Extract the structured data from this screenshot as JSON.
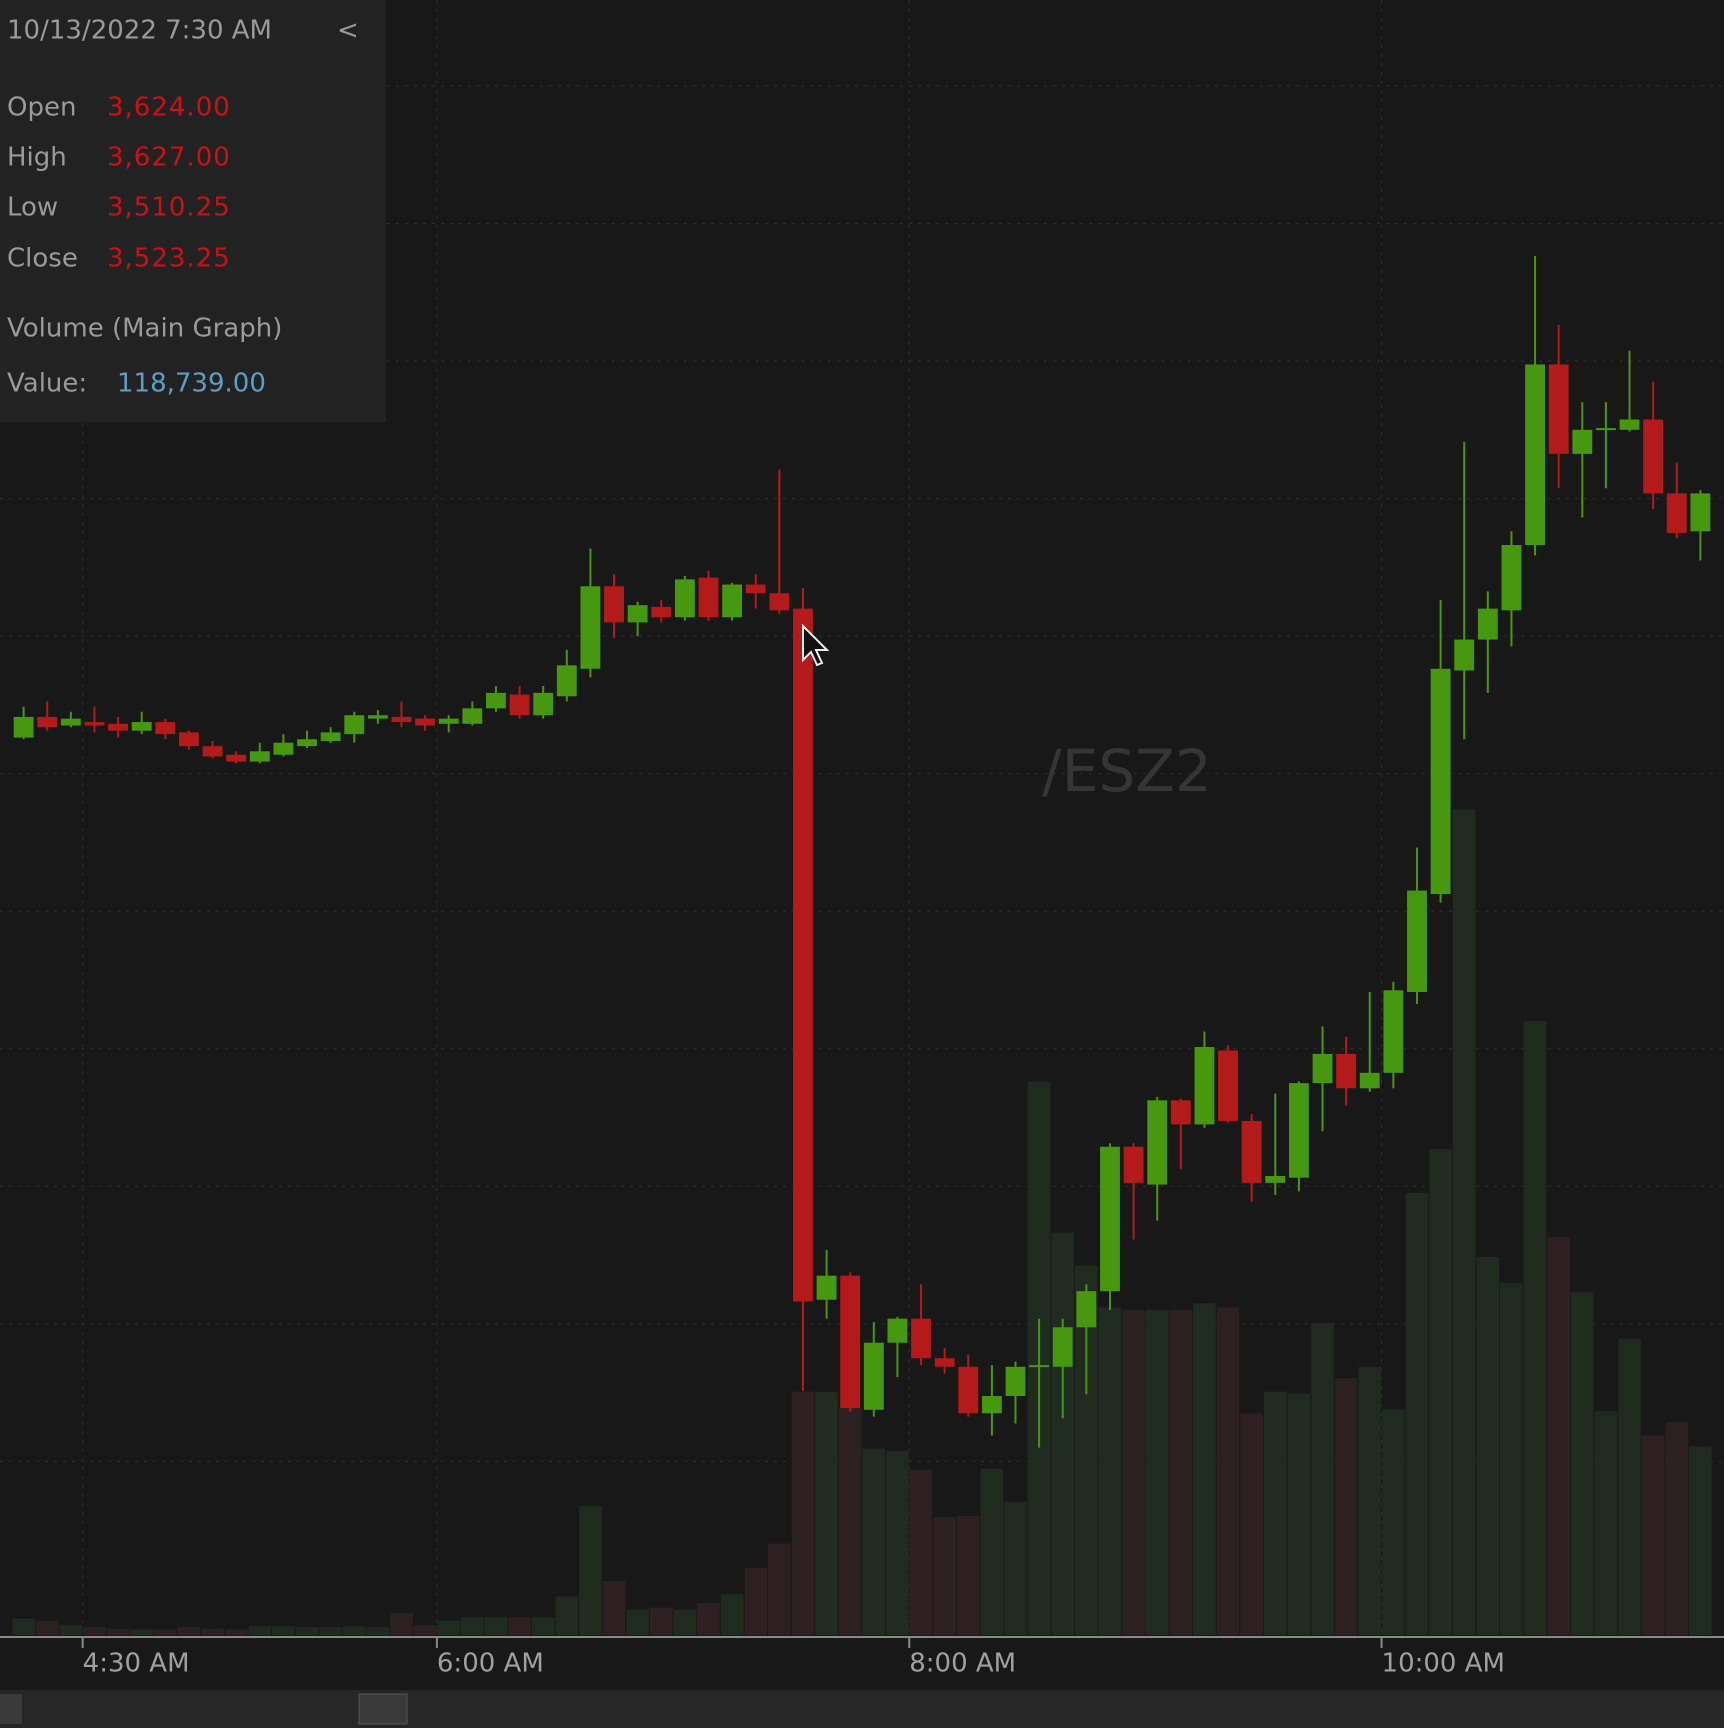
{
  "chart_data": {
    "type": "candlestick",
    "symbol": "/ESZ2",
    "x": [
      "4:12 AM",
      "4:18 AM",
      "4:24 AM",
      "4:30 AM",
      "4:36 AM",
      "4:42 AM",
      "4:48 AM",
      "4:54 AM",
      "5:00 AM",
      "5:06 AM",
      "5:12 AM",
      "5:18 AM",
      "5:24 AM",
      "5:30 AM",
      "5:36 AM",
      "5:42 AM",
      "5:48 AM",
      "5:54 AM",
      "6:00 AM",
      "6:06 AM",
      "6:12 AM",
      "6:18 AM",
      "6:24 AM",
      "6:30 AM",
      "6:36 AM",
      "6:42 AM",
      "6:48 AM",
      "6:54 AM",
      "7:00 AM",
      "7:06 AM",
      "7:12 AM",
      "7:18 AM",
      "7:24 AM",
      "7:30 AM",
      "7:36 AM",
      "7:42 AM",
      "7:48 AM",
      "7:54 AM",
      "8:00 AM",
      "8:06 AM",
      "8:12 AM",
      "8:18 AM",
      "8:24 AM",
      "8:30 AM",
      "8:36 AM",
      "8:42 AM",
      "8:48 AM",
      "8:54 AM",
      "9:00 AM",
      "9:06 AM",
      "9:12 AM",
      "9:18 AM",
      "9:24 AM",
      "9:30 AM",
      "9:36 AM",
      "9:42 AM",
      "9:48 AM",
      "9:54 AM",
      "10:00 AM",
      "10:06 AM",
      "10:12 AM",
      "10:18 AM",
      "10:24 AM",
      "10:30 AM",
      "10:36 AM",
      "10:42 AM",
      "10:48 AM",
      "10:54 AM",
      "11:00 AM",
      "11:06 AM",
      "11:12 AM",
      "11:18 AM"
    ],
    "open": [
      3605.25,
      3608.25,
      3607.0,
      3607.5,
      3607.25,
      3606.25,
      3607.5,
      3606.0,
      3604.0,
      3602.75,
      3601.75,
      3602.75,
      3604.0,
      3604.75,
      3605.75,
      3608.0,
      3608.25,
      3608.0,
      3607.25,
      3607.25,
      3609.5,
      3611.5,
      3608.5,
      3611.25,
      3615.25,
      3627.25,
      3622.0,
      3624.25,
      3622.75,
      3628.5,
      3622.75,
      3627.5,
      3626.25,
      3624,
      3523.5,
      3527.0,
      3507.5,
      3517.25,
      3520.75,
      3515.0,
      3513.75,
      3507.0,
      3509.5,
      3513.75,
      3513.75,
      3519.5,
      3524.75,
      3545.75,
      3540.25,
      3552.5,
      3549.0,
      3559.75,
      3549.5,
      3540.5,
      3541.25,
      3555.0,
      3559.25,
      3554.25,
      3556.5,
      3568.25,
      3582.5,
      3615.0,
      3619.5,
      3623.75,
      3633.25,
      3659.5,
      3646.5,
      3650.0,
      3650.0,
      3651.5,
      3640.75,
      3635.25
    ],
    "high": [
      3609.75,
      3610.5,
      3609.0,
      3609.75,
      3608.25,
      3609.0,
      3608.0,
      3606.25,
      3604.75,
      3603.25,
      3604.5,
      3605.75,
      3606.25,
      3606.75,
      3609.0,
      3609.25,
      3610.5,
      3608.5,
      3608.5,
      3610.5,
      3612.75,
      3612.75,
      3612.75,
      3618.0,
      3632.75,
      3629.0,
      3625.0,
      3625.25,
      3628.75,
      3629.5,
      3627.75,
      3629.0,
      3644.25,
      3627,
      3530.75,
      3527.5,
      3520.25,
      3521.0,
      3525.75,
      3516.5,
      3515.5,
      3514.0,
      3514.5,
      3520.75,
      3520.75,
      3525.75,
      3546.25,
      3546.25,
      3553.0,
      3552.75,
      3562.5,
      3560.5,
      3550.5,
      3553.5,
      3555.25,
      3563.25,
      3561.75,
      3568.25,
      3569.75,
      3589.25,
      3625.25,
      3648.25,
      3626.5,
      3635.25,
      3675.25,
      3665.25,
      3654.0,
      3654.0,
      3661.5,
      3657.0,
      3645.25,
      3641.25
    ],
    "low": [
      3605.0,
      3606.25,
      3606.75,
      3606.0,
      3605.25,
      3605.75,
      3605.0,
      3603.5,
      3602.25,
      3601.5,
      3601.5,
      3602.5,
      3603.75,
      3604.5,
      3604.5,
      3607.25,
      3606.75,
      3606.25,
      3606.0,
      3607.0,
      3609.0,
      3608.0,
      3608.0,
      3610.5,
      3614.0,
      3619.75,
      3620.0,
      3622.0,
      3622.25,
      3622.25,
      3622.25,
      3624.0,
      3623.25,
      3510.25,
      3520.75,
      3507.25,
      3506.5,
      3512.25,
      3514.0,
      3512.75,
      3506.5,
      3503.75,
      3505.5,
      3502.0,
      3506.25,
      3509.75,
      3522.0,
      3532.25,
      3535.0,
      3542.5,
      3548.5,
      3549.25,
      3537.75,
      3538.75,
      3539.25,
      3548.0,
      3551.75,
      3553.75,
      3554.25,
      3566.5,
      3581.25,
      3605.0,
      3611.75,
      3618.5,
      3631.75,
      3641.5,
      3637.25,
      3641.5,
      3649.75,
      3638.5,
      3634.25,
      3631.0
    ],
    "close": [
      3608.25,
      3606.75,
      3608.0,
      3607.0,
      3606.25,
      3607.5,
      3605.75,
      3604.0,
      3602.5,
      3601.75,
      3603.25,
      3604.5,
      3605.0,
      3606.0,
      3608.5,
      3608.5,
      3607.5,
      3607.0,
      3608.0,
      3609.5,
      3611.75,
      3608.5,
      3611.75,
      3615.75,
      3627.25,
      3622.0,
      3624.5,
      3622.75,
      3628.25,
      3622.75,
      3627.5,
      3626.25,
      3623.75,
      3523.25,
      3527.0,
      3507.75,
      3517.25,
      3520.75,
      3515.0,
      3513.75,
      3507.0,
      3509.5,
      3513.75,
      3514.0,
      3519.5,
      3524.75,
      3545.75,
      3540.5,
      3552.5,
      3549.0,
      3560.25,
      3549.5,
      3540.5,
      3541.5,
      3555.0,
      3559.25,
      3554.25,
      3556.5,
      3568.5,
      3583.0,
      3615.25,
      3619.5,
      3624.0,
      3633.25,
      3659.5,
      3646.5,
      3650.0,
      3650.25,
      3651.5,
      3640.75,
      3635.0,
      3640.75
    ],
    "volume": [
      8100,
      7000,
      4800,
      3800,
      3200,
      2700,
      2700,
      3800,
      3200,
      2700,
      4300,
      4300,
      3800,
      3800,
      4300,
      3800,
      10700,
      4800,
      7000,
      8600,
      8600,
      8600,
      8600,
      18800,
      62900,
      26300,
      12400,
      13400,
      12400,
      15600,
      19900,
      32800,
      44600,
      118739,
      118500,
      111200,
      90800,
      89700,
      80600,
      57500,
      58000,
      81100,
      65000,
      269700,
      196100,
      180000,
      159600,
      158500,
      158500,
      158500,
      161700,
      159600,
      108000,
      118700,
      117700,
      152100,
      125200,
      130600,
      110100,
      215500,
      236900,
      402400,
      184300,
      171400,
      299300,
      194000,
      167100,
      109100,
      144500,
      97300,
      103700,
      91900
    ],
    "xlim": [
      "4:09 AM",
      "11:27 AM"
    ],
    "xticks": [
      "4:30 AM",
      "6:00 AM",
      "8:00 AM",
      "10:00 AM"
    ],
    "ylim": [
      3474.75,
      3712.5
    ],
    "ygrid": [
      3500,
      3520,
      3540,
      3560,
      3580,
      3600,
      3620,
      3640,
      3660,
      3680,
      3700
    ],
    "volume_lim": [
      0,
      797000
    ],
    "up_color": "#46990f",
    "down_color": "#b51a1a",
    "up_volume_color": "#1e2b1e",
    "down_volume_color": "#2d2020"
  },
  "info_panel": {
    "datetime": "10/13/2022 7:30 AM",
    "collapse": "<",
    "rows": [
      [
        "Open",
        "3,624.00"
      ],
      [
        "High",
        "3,627.00"
      ],
      [
        "Low",
        "3,510.25"
      ],
      [
        "Close",
        "3,523.25"
      ]
    ],
    "study": "Volume (Main Graph)",
    "study_label": "Value:",
    "study_value": "118,739.00"
  }
}
